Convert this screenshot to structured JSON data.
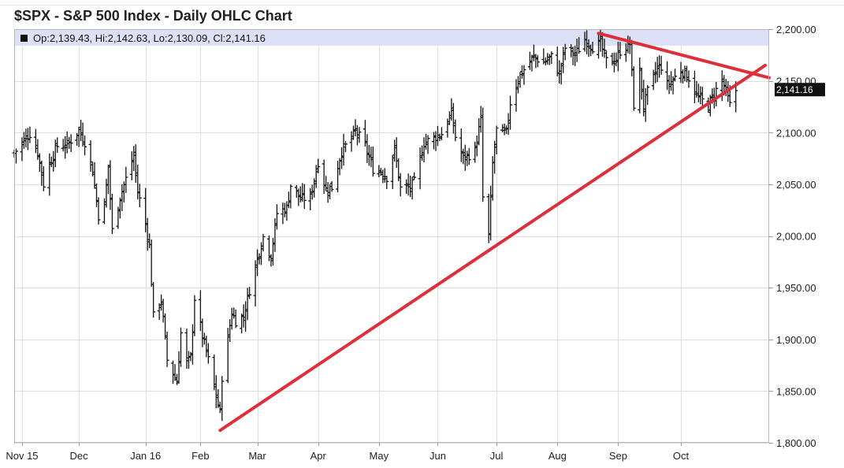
{
  "page": {
    "title": "$SPX - S&P 500 Index - Daily OHLC Chart"
  },
  "chart_data": {
    "type": "ohlc",
    "title": "$SPX - S&P 500 Index - Daily OHLC Chart",
    "ohlc_label": "Op:2,139.43, Hi:2,142.63, Lo:2,130.09, Cl:2,141.16",
    "last_price_label": "2,141.16",
    "last": {
      "open": 2139.43,
      "high": 2142.63,
      "low": 2130.09,
      "close": 2141.16
    },
    "ylim": [
      1800,
      2200
    ],
    "y_ticks": [
      1800,
      1850,
      1900,
      1950,
      2000,
      2050,
      2100,
      2150,
      2200
    ],
    "y_tick_labels": [
      "1,800.00",
      "1,850.00",
      "1,900.00",
      "1,950.00",
      "2,000.00",
      "2,050.00",
      "2,100.00",
      "2,150.00",
      "2,200.00"
    ],
    "x_labels": [
      "Nov 15",
      "Dec",
      "Jan 16",
      "Feb",
      "Mar",
      "Apr",
      "May",
      "Jun",
      "Jul",
      "Aug",
      "Sep",
      "Oct"
    ],
    "x_label_dates": [
      "2015-11-02",
      "2015-12-01",
      "2016-01-04",
      "2016-02-01",
      "2016-03-01",
      "2016-04-01",
      "2016-05-02",
      "2016-06-01",
      "2016-07-01",
      "2016-08-01",
      "2016-09-01",
      "2016-10-03"
    ],
    "x_start": "2015-10-29",
    "x_end": "2016-11-17",
    "grid": true,
    "colors": {
      "trendline": "#dd2e3a",
      "bars": "#111111",
      "ohlc_band": "#dde0f7",
      "price_tag": "#111111"
    },
    "series_closes": [
      [
        "2015-10-29",
        2080
      ],
      [
        "2015-11-02",
        2090
      ],
      [
        "2015-11-04",
        2095
      ],
      [
        "2015-11-06",
        2099
      ],
      [
        "2015-11-10",
        2081
      ],
      [
        "2015-11-13",
        2050
      ],
      [
        "2015-11-16",
        2070
      ],
      [
        "2015-11-20",
        2087
      ],
      [
        "2015-11-25",
        2088
      ],
      [
        "2015-12-01",
        2102
      ],
      [
        "2015-12-04",
        2091
      ],
      [
        "2015-12-08",
        2063
      ],
      [
        "2015-12-11",
        2020
      ],
      [
        "2015-12-14",
        2030
      ],
      [
        "2015-12-16",
        2067
      ],
      [
        "2015-12-18",
        2005
      ],
      [
        "2015-12-22",
        2038
      ],
      [
        "2015-12-29",
        2078
      ],
      [
        "2015-12-31",
        2043
      ],
      [
        "2016-01-04",
        2012
      ],
      [
        "2016-01-06",
        1990
      ],
      [
        "2016-01-08",
        1922
      ],
      [
        "2016-01-12",
        1938
      ],
      [
        "2016-01-15",
        1880
      ],
      [
        "2016-01-20",
        1859
      ],
      [
        "2016-01-22",
        1906
      ],
      [
        "2016-01-25",
        1877
      ],
      [
        "2016-01-27",
        1882
      ],
      [
        "2016-01-29",
        1940
      ],
      [
        "2016-02-02",
        1903
      ],
      [
        "2016-02-05",
        1880
      ],
      [
        "2016-02-08",
        1853
      ],
      [
        "2016-02-11",
        1829
      ],
      [
        "2016-02-12",
        1864
      ],
      [
        "2016-02-17",
        1926
      ],
      [
        "2016-02-19",
        1918
      ],
      [
        "2016-02-23",
        1922
      ],
      [
        "2016-02-26",
        1948
      ],
      [
        "2016-03-01",
        1978
      ],
      [
        "2016-03-04",
        1999
      ],
      [
        "2016-03-08",
        1980
      ],
      [
        "2016-03-11",
        2022
      ],
      [
        "2016-03-16",
        2027
      ],
      [
        "2016-03-18",
        2049
      ],
      [
        "2016-03-23",
        2036
      ],
      [
        "2016-03-28",
        2037
      ],
      [
        "2016-04-01",
        2072
      ],
      [
        "2016-04-05",
        2045
      ],
      [
        "2016-04-08",
        2047
      ],
      [
        "2016-04-13",
        2082
      ],
      [
        "2016-04-18",
        2094
      ],
      [
        "2016-04-20",
        2102
      ],
      [
        "2016-04-25",
        2087
      ],
      [
        "2016-04-29",
        2065
      ],
      [
        "2016-05-03",
        2063
      ],
      [
        "2016-05-06",
        2057
      ],
      [
        "2016-05-10",
        2084
      ],
      [
        "2016-05-13",
        2046
      ],
      [
        "2016-05-18",
        2047
      ],
      [
        "2016-05-20",
        2052
      ],
      [
        "2016-05-25",
        2090
      ],
      [
        "2016-05-31",
        2096
      ],
      [
        "2016-06-03",
        2099
      ],
      [
        "2016-06-08",
        2119
      ],
      [
        "2016-06-10",
        2096
      ],
      [
        "2016-06-14",
        2075
      ],
      [
        "2016-06-16",
        2077
      ],
      [
        "2016-06-20",
        2083
      ],
      [
        "2016-06-23",
        2113
      ],
      [
        "2016-06-24",
        2037
      ],
      [
        "2016-06-27",
        2000
      ],
      [
        "2016-06-29",
        2070
      ],
      [
        "2016-07-01",
        2102
      ],
      [
        "2016-07-06",
        2099
      ],
      [
        "2016-07-08",
        2129
      ],
      [
        "2016-07-12",
        2152
      ],
      [
        "2016-07-15",
        2161
      ],
      [
        "2016-07-20",
        2173
      ],
      [
        "2016-07-25",
        2168
      ],
      [
        "2016-07-29",
        2173
      ],
      [
        "2016-08-02",
        2157
      ],
      [
        "2016-08-05",
        2182
      ],
      [
        "2016-08-10",
        2175
      ],
      [
        "2016-08-15",
        2190
      ],
      [
        "2016-08-19",
        2183
      ],
      [
        "2016-08-23",
        2186
      ],
      [
        "2016-08-26",
        2169
      ],
      [
        "2016-08-31",
        2170
      ],
      [
        "2016-09-02",
        2179
      ],
      [
        "2016-09-07",
        2186
      ],
      [
        "2016-09-09",
        2127
      ],
      [
        "2016-09-12",
        2159
      ],
      [
        "2016-09-14",
        2125
      ],
      [
        "2016-09-16",
        2139
      ],
      [
        "2016-09-21",
        2163
      ],
      [
        "2016-09-23",
        2164
      ],
      [
        "2016-09-26",
        2146
      ],
      [
        "2016-09-29",
        2151
      ],
      [
        "2016-10-03",
        2161
      ],
      [
        "2016-10-07",
        2153
      ],
      [
        "2016-10-11",
        2136
      ],
      [
        "2016-10-13",
        2132
      ],
      [
        "2016-10-17",
        2126
      ],
      [
        "2016-10-21",
        2141
      ],
      [
        "2016-10-24",
        2151
      ],
      [
        "2016-10-26",
        2139
      ],
      [
        "2016-10-28",
        2126
      ],
      [
        "2016-10-31",
        2141
      ]
    ],
    "annotations": [
      {
        "type": "trendline",
        "from": [
          "2016-02-11",
          1812
        ],
        "to": [
          "2016-11-15",
          2165
        ]
      },
      {
        "type": "trendline",
        "from": [
          "2016-08-22",
          2196
        ],
        "to": [
          "2016-11-17",
          2153
        ]
      }
    ]
  }
}
